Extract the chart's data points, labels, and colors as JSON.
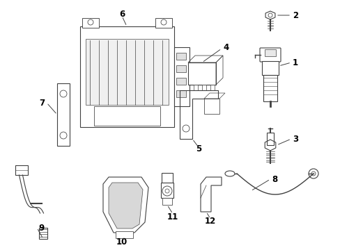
{
  "background_color": "#ffffff",
  "line_color": "#404040",
  "label_color": "#000000",
  "figsize": [
    4.89,
    3.6
  ],
  "dpi": 100
}
